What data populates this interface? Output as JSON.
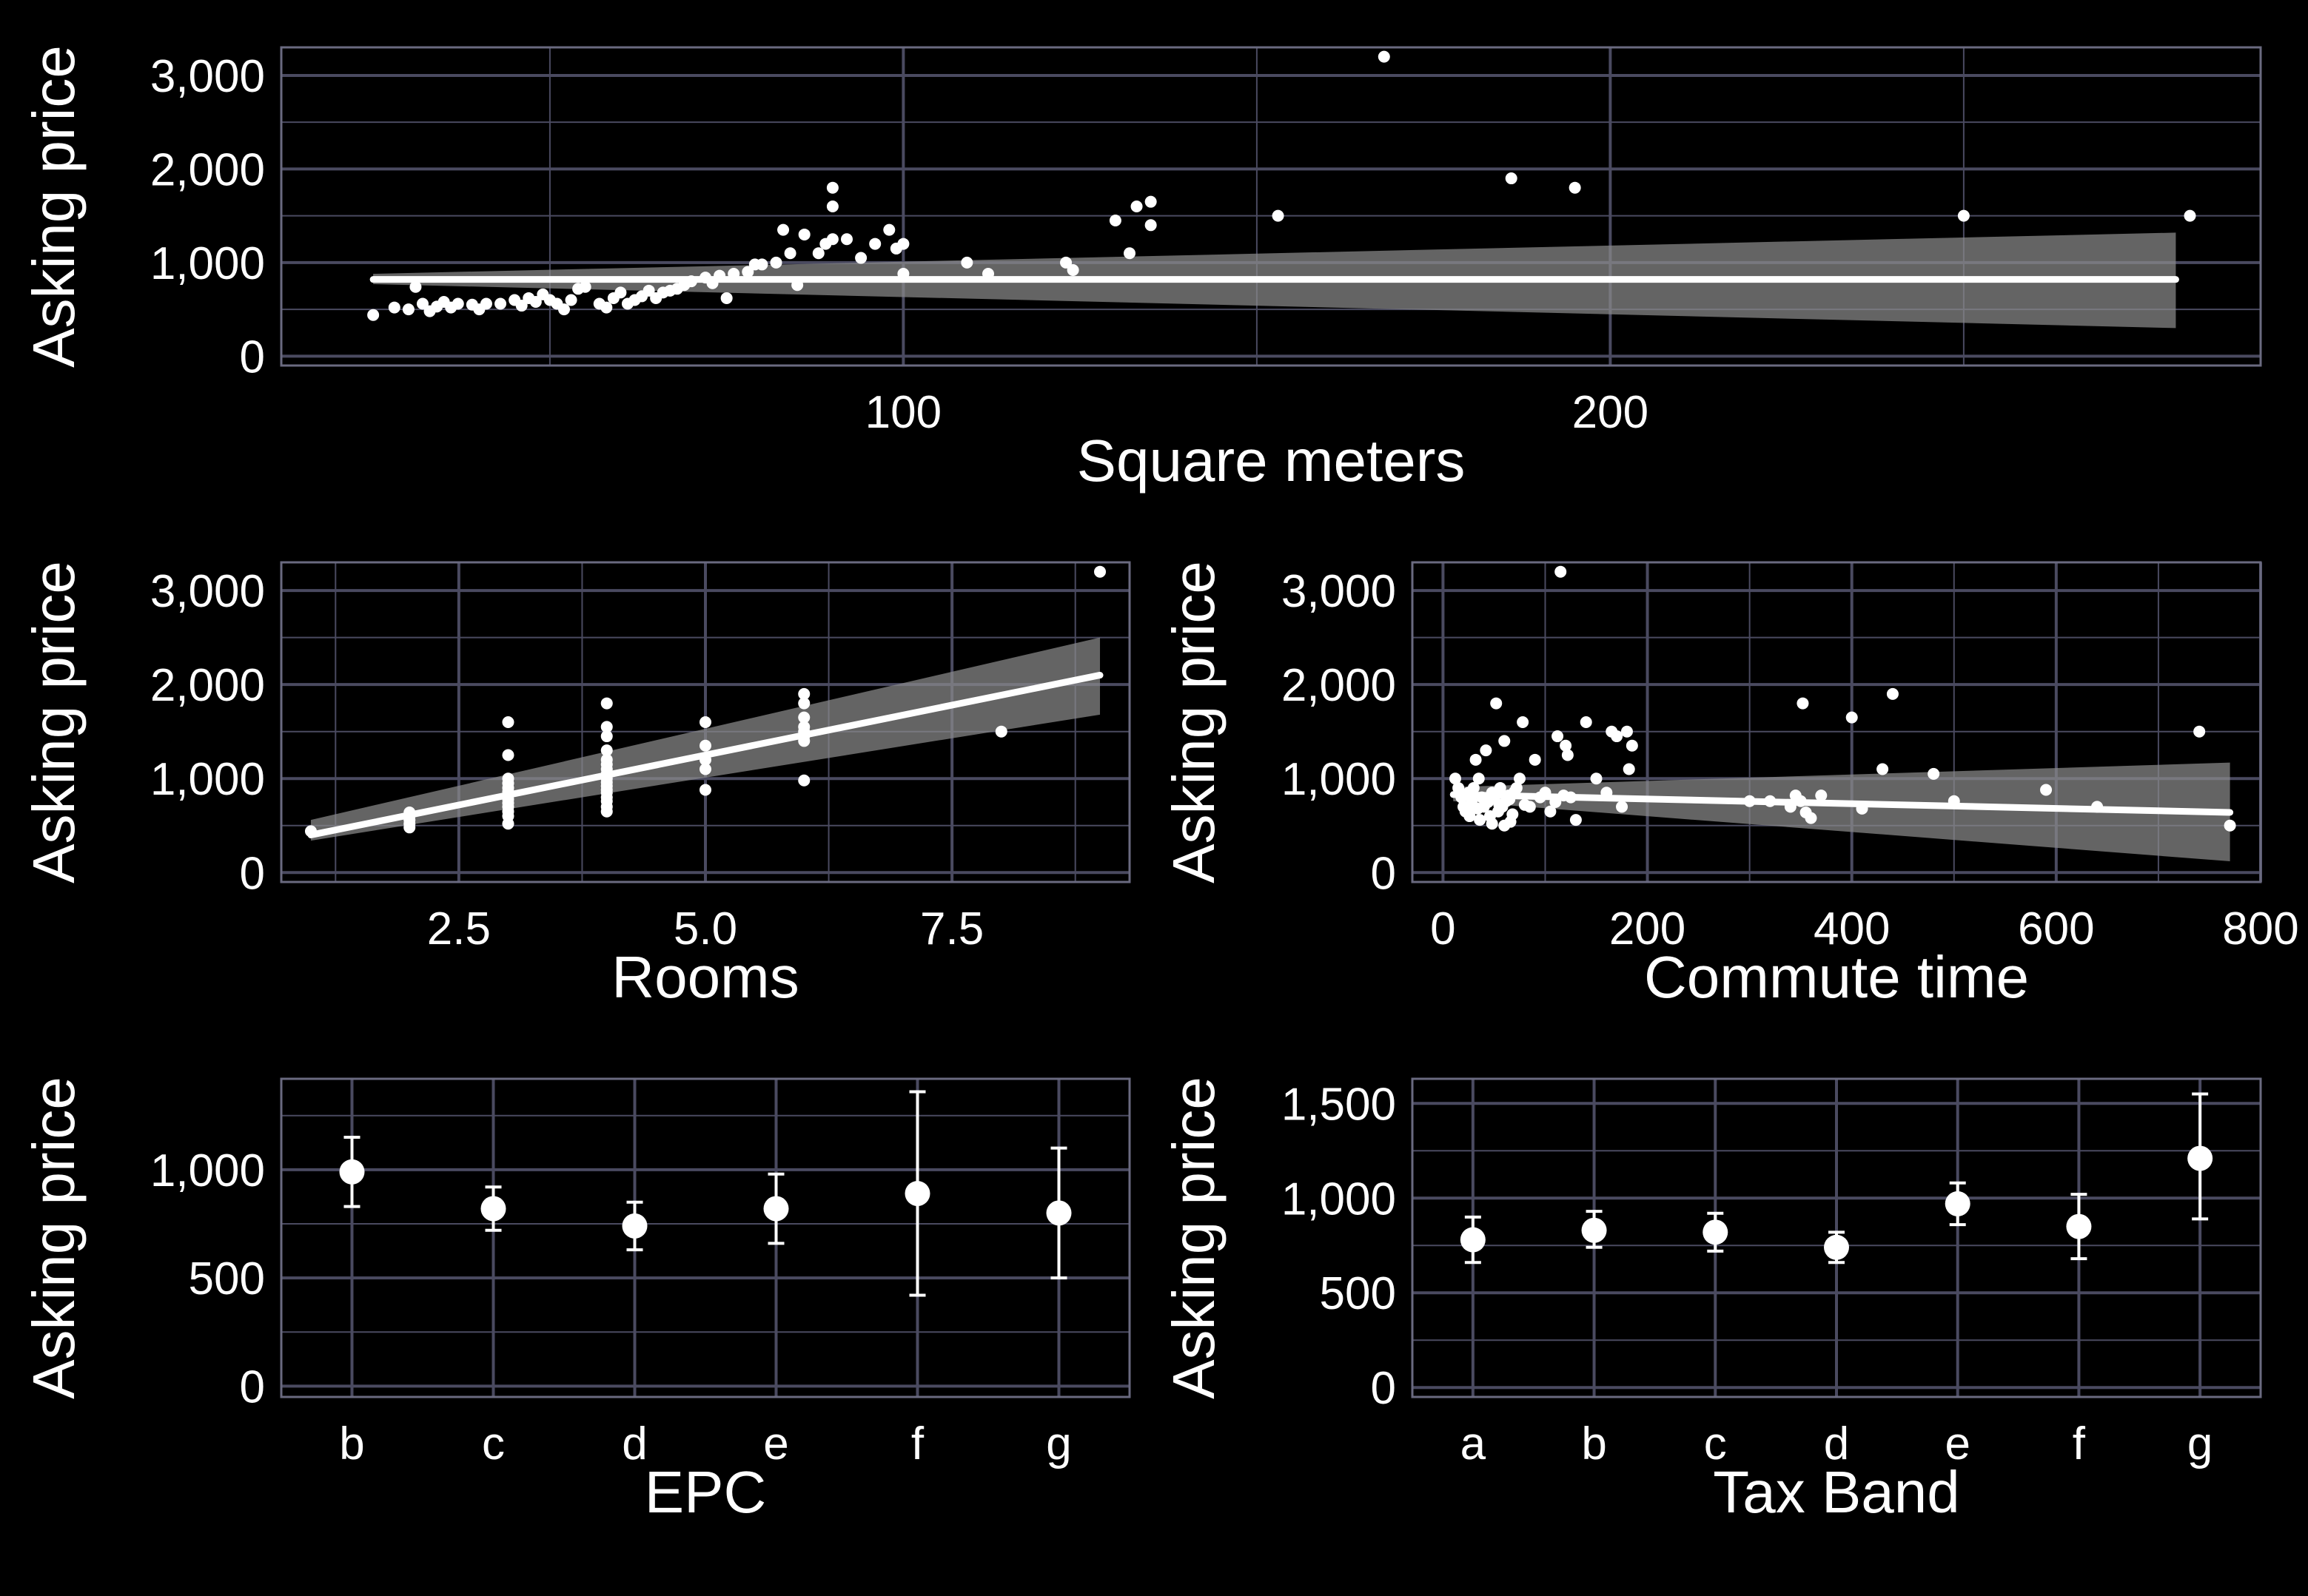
{
  "colors": {
    "background": "#000000",
    "grid": "#4a4a60",
    "frame": "#6a6a80",
    "marks": "#ffffff",
    "band": "#8a8a8a"
  },
  "chart_data": [
    {
      "id": "sqm",
      "type": "scatter",
      "xlabel": "Square meters",
      "ylabel": "Asking price",
      "xlim": [
        12,
        292
      ],
      "ylim": [
        -100,
        3300
      ],
      "xticks": [
        100,
        200
      ],
      "xtick_labels": [
        "100",
        "200"
      ],
      "yticks": [
        0,
        1000,
        2000,
        3000
      ],
      "ytick_labels": [
        "0",
        "1,000",
        "2,000",
        "3,000"
      ],
      "grid": true,
      "regression": {
        "x": [
          25,
          280
        ],
        "y": [
          820,
          820
        ],
        "ci_lower": [
          770,
          300
        ],
        "ci_upper": [
          880,
          1320
        ]
      },
      "points": [
        [
          25,
          440
        ],
        [
          28,
          520
        ],
        [
          30,
          500
        ],
        [
          31,
          740
        ],
        [
          32,
          560
        ],
        [
          33,
          480
        ],
        [
          34,
          530
        ],
        [
          35,
          580
        ],
        [
          36,
          520
        ],
        [
          37,
          560
        ],
        [
          39,
          550
        ],
        [
          40,
          500
        ],
        [
          41,
          560
        ],
        [
          43,
          560
        ],
        [
          45,
          600
        ],
        [
          46,
          540
        ],
        [
          47,
          620
        ],
        [
          48,
          580
        ],
        [
          49,
          660
        ],
        [
          50,
          600
        ],
        [
          51,
          560
        ],
        [
          52,
          500
        ],
        [
          53,
          600
        ],
        [
          54,
          720
        ],
        [
          55,
          740
        ],
        [
          57,
          560
        ],
        [
          58,
          520
        ],
        [
          59,
          620
        ],
        [
          60,
          680
        ],
        [
          61,
          560
        ],
        [
          62,
          600
        ],
        [
          63,
          640
        ],
        [
          64,
          700
        ],
        [
          65,
          620
        ],
        [
          66,
          680
        ],
        [
          67,
          700
        ],
        [
          68,
          720
        ],
        [
          69,
          760
        ],
        [
          70,
          800
        ],
        [
          72,
          840
        ],
        [
          74,
          860
        ],
        [
          76,
          880
        ],
        [
          78,
          900
        ],
        [
          80,
          980
        ],
        [
          82,
          1000
        ],
        [
          84,
          1100
        ],
        [
          86,
          1300
        ],
        [
          88,
          1100
        ],
        [
          89,
          1200
        ],
        [
          90,
          1250
        ],
        [
          90,
          1600
        ],
        [
          90,
          1800
        ],
        [
          92,
          1250
        ],
        [
          94,
          1050
        ],
        [
          96,
          1200
        ],
        [
          98,
          1350
        ],
        [
          99,
          1150
        ],
        [
          100,
          1200
        ],
        [
          100,
          880
        ],
        [
          109,
          1000
        ],
        [
          112,
          880
        ],
        [
          123,
          1000
        ],
        [
          124,
          920
        ],
        [
          130,
          1450
        ],
        [
          132,
          1100
        ],
        [
          133,
          1600
        ],
        [
          135,
          1650
        ],
        [
          135,
          1400
        ],
        [
          153,
          1500
        ],
        [
          168,
          3200
        ],
        [
          186,
          1900
        ],
        [
          195,
          1800
        ],
        [
          250,
          1500
        ],
        [
          282,
          1500
        ],
        [
          75,
          620
        ],
        [
          85,
          760
        ],
        [
          79,
          980
        ],
        [
          73,
          780
        ],
        [
          83,
          1350
        ]
      ]
    },
    {
      "id": "rooms",
      "type": "scatter",
      "xlabel": "Rooms",
      "ylabel": "Asking price",
      "xlim": [
        0.7,
        9.3
      ],
      "ylim": [
        -100,
        3300
      ],
      "xticks": [
        2.5,
        5.0,
        7.5
      ],
      "xtick_labels": [
        "2.5",
        "5.0",
        "7.5"
      ],
      "yticks": [
        0,
        1000,
        2000,
        3000
      ],
      "ytick_labels": [
        "0",
        "1,000",
        "2,000",
        "3,000"
      ],
      "grid": true,
      "regression": {
        "x": [
          1,
          9
        ],
        "y": [
          400,
          2100
        ],
        "ci_lower": [
          340,
          1680
        ],
        "ci_upper": [
          560,
          2500
        ]
      },
      "points": [
        [
          1,
          440
        ],
        [
          2,
          480
        ],
        [
          2,
          520
        ],
        [
          2,
          560
        ],
        [
          2,
          600
        ],
        [
          2,
          640
        ],
        [
          3,
          520
        ],
        [
          3,
          600
        ],
        [
          3,
          650
        ],
        [
          3,
          700
        ],
        [
          3,
          740
        ],
        [
          3,
          780
        ],
        [
          3,
          820
        ],
        [
          3,
          860
        ],
        [
          3,
          900
        ],
        [
          3,
          950
        ],
        [
          3,
          1000
        ],
        [
          3,
          1250
        ],
        [
          3,
          1600
        ],
        [
          4,
          650
        ],
        [
          4,
          700
        ],
        [
          4,
          760
        ],
        [
          4,
          800
        ],
        [
          4,
          850
        ],
        [
          4,
          880
        ],
        [
          4,
          920
        ],
        [
          4,
          960
        ],
        [
          4,
          1000
        ],
        [
          4,
          1050
        ],
        [
          4,
          1100
        ],
        [
          4,
          1150
        ],
        [
          4,
          1200
        ],
        [
          4,
          1300
        ],
        [
          4,
          1450
        ],
        [
          4,
          1550
        ],
        [
          4,
          1800
        ],
        [
          5,
          880
        ],
        [
          5,
          1100
        ],
        [
          5,
          1200
        ],
        [
          5,
          1350
        ],
        [
          5,
          1600
        ],
        [
          6,
          980
        ],
        [
          6,
          1400
        ],
        [
          6,
          1450
        ],
        [
          6,
          1500
        ],
        [
          6,
          1550
        ],
        [
          6,
          1650
        ],
        [
          6,
          1800
        ],
        [
          6,
          1900
        ],
        [
          8,
          1500
        ],
        [
          9,
          3200
        ]
      ]
    },
    {
      "id": "commute",
      "type": "scatter",
      "xlabel": "Commute time",
      "ylabel": "Asking price",
      "xlim": [
        -30,
        800
      ],
      "ylim": [
        -100,
        3300
      ],
      "xticks": [
        0,
        200,
        400,
        600,
        800
      ],
      "xtick_labels": [
        "0",
        "200",
        "400",
        "600",
        "800"
      ],
      "yticks": [
        0,
        1000,
        2000,
        3000
      ],
      "ytick_labels": [
        "0",
        "1,000",
        "2,000",
        "3,000"
      ],
      "grid": true,
      "regression": {
        "x": [
          10,
          770
        ],
        "y": [
          830,
          640
        ],
        "ci_lower": [
          760,
          120
        ],
        "ci_upper": [
          910,
          1170
        ]
      },
      "points": [
        [
          12,
          1000
        ],
        [
          15,
          900
        ],
        [
          18,
          800
        ],
        [
          20,
          700
        ],
        [
          22,
          650
        ],
        [
          25,
          850
        ],
        [
          26,
          600
        ],
        [
          28,
          750
        ],
        [
          30,
          900
        ],
        [
          32,
          1200
        ],
        [
          34,
          680
        ],
        [
          36,
          560
        ],
        [
          38,
          800
        ],
        [
          40,
          700
        ],
        [
          42,
          1300
        ],
        [
          44,
          750
        ],
        [
          46,
          600
        ],
        [
          48,
          850
        ],
        [
          50,
          800
        ],
        [
          52,
          1800
        ],
        [
          54,
          650
        ],
        [
          56,
          900
        ],
        [
          58,
          700
        ],
        [
          60,
          1400
        ],
        [
          62,
          760
        ],
        [
          64,
          820
        ],
        [
          66,
          540
        ],
        [
          68,
          620
        ],
        [
          70,
          860
        ],
        [
          72,
          900
        ],
        [
          75,
          1000
        ],
        [
          78,
          1600
        ],
        [
          80,
          720
        ],
        [
          85,
          700
        ],
        [
          90,
          1200
        ],
        [
          95,
          800
        ],
        [
          100,
          850
        ],
        [
          105,
          650
        ],
        [
          110,
          750
        ],
        [
          112,
          1450
        ],
        [
          115,
          3200
        ],
        [
          118,
          820
        ],
        [
          120,
          1350
        ],
        [
          122,
          1250
        ],
        [
          125,
          800
        ],
        [
          130,
          560
        ],
        [
          140,
          1600
        ],
        [
          150,
          1000
        ],
        [
          160,
          850
        ],
        [
          165,
          1500
        ],
        [
          170,
          1450
        ],
        [
          175,
          700
        ],
        [
          180,
          1500
        ],
        [
          182,
          1100
        ],
        [
          185,
          1350
        ],
        [
          300,
          760
        ],
        [
          320,
          760
        ],
        [
          340,
          700
        ],
        [
          345,
          820
        ],
        [
          350,
          760
        ],
        [
          352,
          1800
        ],
        [
          355,
          640
        ],
        [
          360,
          580
        ],
        [
          370,
          820
        ],
        [
          400,
          1650
        ],
        [
          410,
          680
        ],
        [
          430,
          1100
        ],
        [
          440,
          1900
        ],
        [
          480,
          1050
        ],
        [
          500,
          760
        ],
        [
          590,
          880
        ],
        [
          640,
          700
        ],
        [
          740,
          1500
        ],
        [
          770,
          500
        ],
        [
          35,
          1000
        ],
        [
          45,
          780
        ],
        [
          55,
          720
        ],
        [
          65,
          780
        ],
        [
          48,
          520
        ],
        [
          25,
          700
        ],
        [
          60,
          500
        ]
      ]
    },
    {
      "id": "epc",
      "type": "errorbar",
      "xlabel": "EPC",
      "ylabel": "Asking price",
      "categories": [
        "b",
        "c",
        "d",
        "e",
        "f",
        "g"
      ],
      "values": [
        990,
        820,
        740,
        820,
        890,
        800
      ],
      "err_lower": [
        830,
        720,
        630,
        660,
        420,
        500
      ],
      "err_upper": [
        1150,
        920,
        850,
        980,
        1360,
        1100
      ],
      "ylim": [
        -50,
        1420
      ],
      "yticks": [
        0,
        500,
        1000
      ],
      "ytick_labels": [
        "0",
        "500",
        "1,000"
      ],
      "grid": true
    },
    {
      "id": "tax",
      "type": "errorbar",
      "xlabel": "Tax Band",
      "ylabel": "Asking price",
      "categories": [
        "a",
        "b",
        "c",
        "d",
        "e",
        "f",
        "g"
      ],
      "values": [
        780,
        830,
        820,
        740,
        970,
        850,
        1210
      ],
      "err_lower": [
        660,
        740,
        720,
        660,
        860,
        680,
        890
      ],
      "err_upper": [
        900,
        930,
        920,
        820,
        1080,
        1020,
        1550
      ],
      "ylim": [
        -50,
        1630
      ],
      "yticks": [
        0,
        500,
        1000,
        1500
      ],
      "ytick_labels": [
        "0",
        "500",
        "1,000",
        "1,500"
      ],
      "grid": true
    }
  ]
}
